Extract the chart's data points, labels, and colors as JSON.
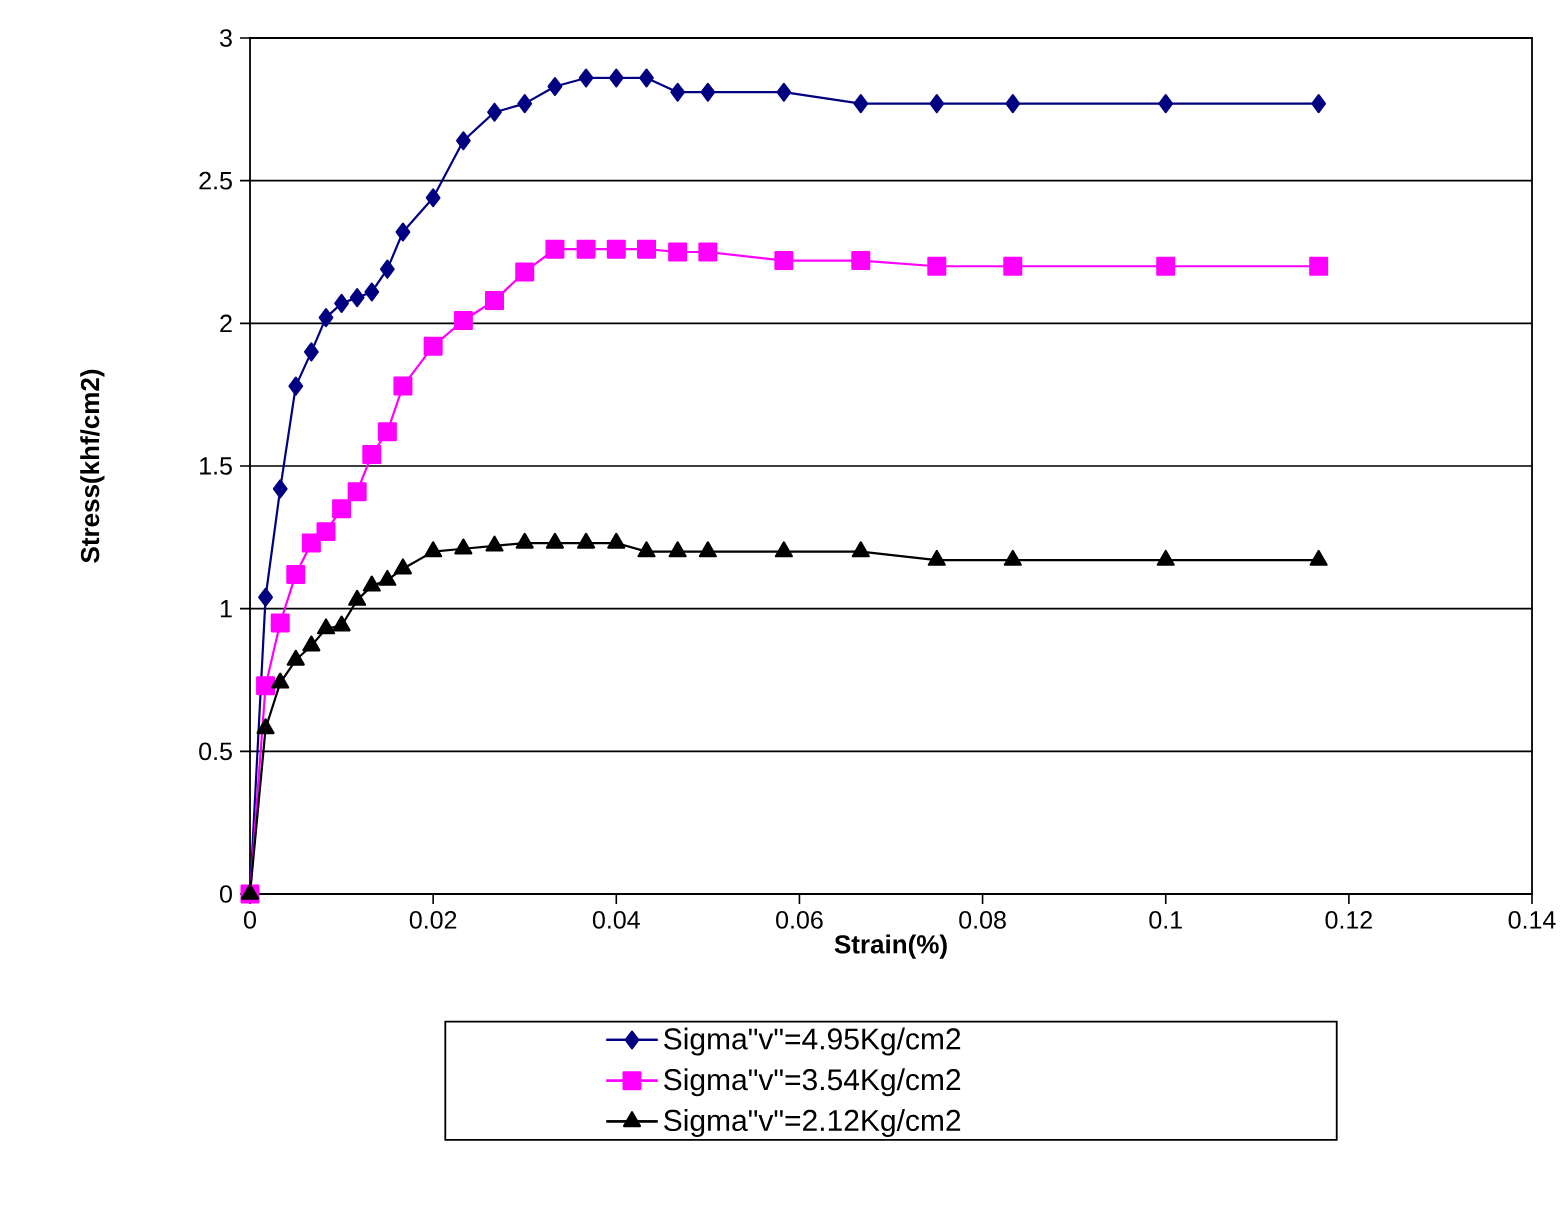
{
  "chart_data": {
    "type": "line",
    "xlabel": "Strain(%)",
    "ylabel": "Stress(khf/cm2)",
    "x": [
      0,
      0.0017,
      0.0033,
      0.005,
      0.0067,
      0.0083,
      0.01,
      0.0117,
      0.0133,
      0.015,
      0.0167,
      0.02,
      0.0233,
      0.0267,
      0.03,
      0.0333,
      0.0367,
      0.04,
      0.0433,
      0.0467,
      0.05,
      0.0583,
      0.0667,
      0.075,
      0.0833,
      0.1,
      0.1167
    ],
    "series": [
      {
        "name": "Sigma\"v\"=4.95Kg/cm2",
        "color": "#000080",
        "marker": "diamond",
        "values": [
          0,
          1.04,
          1.42,
          1.78,
          1.9,
          2.02,
          2.07,
          2.09,
          2.11,
          2.19,
          2.32,
          2.44,
          2.64,
          2.74,
          2.77,
          2.83,
          2.86,
          2.86,
          2.86,
          2.81,
          2.81,
          2.81,
          2.77,
          2.77,
          2.77,
          2.77,
          2.77
        ]
      },
      {
        "name": "Sigma\"v\"=3.54Kg/cm2",
        "color": "#ff00ff",
        "marker": "square",
        "values": [
          0,
          0.73,
          0.95,
          1.12,
          1.23,
          1.27,
          1.35,
          1.41,
          1.54,
          1.62,
          1.78,
          1.92,
          2.01,
          2.08,
          2.18,
          2.26,
          2.26,
          2.26,
          2.26,
          2.25,
          2.25,
          2.22,
          2.22,
          2.2,
          2.2,
          2.2,
          2.2
        ]
      },
      {
        "name": "Sigma\"v\"=2.12Kg/cm2",
        "color": "#000000",
        "marker": "triangle",
        "values": [
          0,
          0.58,
          0.74,
          0.82,
          0.87,
          0.93,
          0.94,
          1.03,
          1.08,
          1.1,
          1.14,
          1.2,
          1.21,
          1.22,
          1.23,
          1.23,
          1.23,
          1.23,
          1.2,
          1.2,
          1.2,
          1.2,
          1.2,
          1.17,
          1.17,
          1.17,
          1.17
        ]
      }
    ],
    "xlim": [
      0,
      0.14
    ],
    "xticks": [
      0,
      0.02,
      0.04,
      0.06,
      0.08,
      0.1,
      0.12,
      0.14
    ],
    "ylim": [
      0,
      3
    ],
    "yticks": [
      0,
      0.5,
      1,
      1.5,
      2,
      2.5,
      3
    ],
    "grid": "y",
    "legend": "bottom",
    "line_style": "solid"
  }
}
